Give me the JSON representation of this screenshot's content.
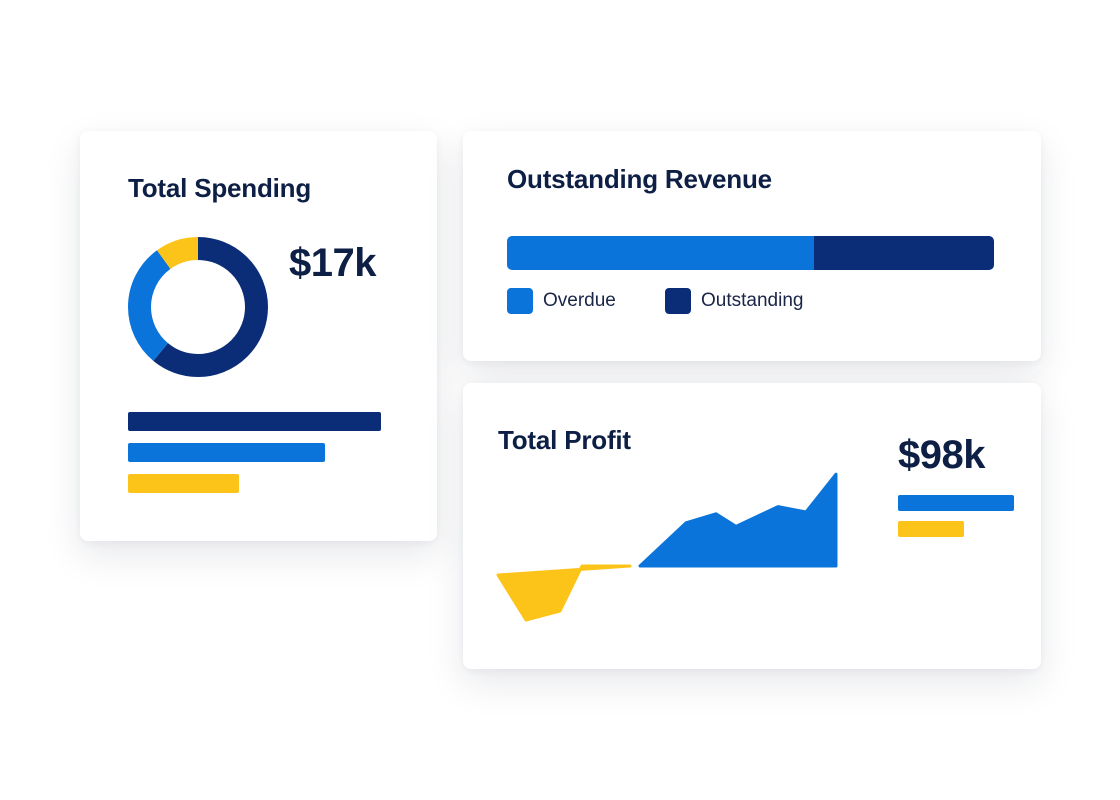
{
  "colors": {
    "blue": "#0a74da",
    "navy": "#0b2d78",
    "yellow": "#fcc419",
    "title": "#0d1f45"
  },
  "spending": {
    "title": "Total Spending",
    "value": "$17k"
  },
  "revenue": {
    "title": "Outstanding Revenue"
  },
  "profit": {
    "title": "Total Profit",
    "value": "$98k"
  },
  "chart_data": [
    {
      "type": "pie",
      "variant": "donut",
      "slices": [
        {
          "color": "#0b2d78",
          "fraction": 0.61
        },
        {
          "color": "#0a74da",
          "fraction": 0.29
        },
        {
          "color": "#fcc419",
          "fraction": 0.1
        }
      ],
      "bars": [
        {
          "color": "#0b2d78",
          "fraction": 1.0
        },
        {
          "color": "#0a74da",
          "fraction": 0.78
        },
        {
          "color": "#fcc419",
          "fraction": 0.44
        }
      ]
    },
    {
      "type": "bar",
      "orientation": "horizontal-stacked",
      "series": [
        {
          "name": "Overdue",
          "color": "#0a74da",
          "value": 0.63
        },
        {
          "name": "Outstanding",
          "color": "#0b2d78",
          "value": 0.37
        }
      ],
      "legend": "bottom-left"
    },
    {
      "type": "area",
      "series": [
        {
          "color": "#fcc419",
          "x": [
            0,
            14,
            31,
            42,
            66
          ],
          "y": [
            -0.5,
            -3,
            -2.5,
            0,
            0
          ]
        },
        {
          "color": "#0a74da",
          "x": [
            71,
            94,
            109,
            119,
            140,
            154,
            169
          ],
          "y": [
            0,
            2.4,
            2.9,
            2.2,
            3.3,
            3.0,
            5.1
          ]
        }
      ],
      "bars": [
        {
          "color": "#0a74da",
          "fraction": 1.0
        },
        {
          "color": "#fcc419",
          "fraction": 0.57
        }
      ]
    }
  ]
}
